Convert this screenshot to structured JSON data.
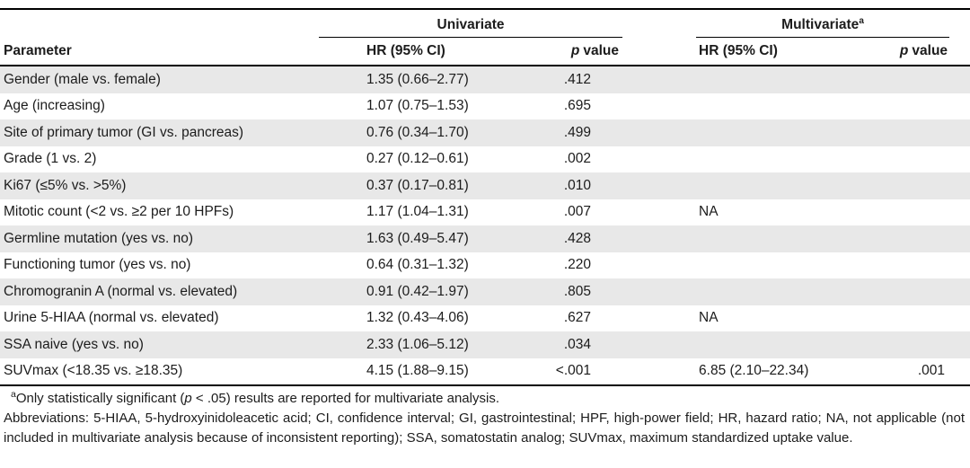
{
  "colors": {
    "stripe": "#e8e8e8",
    "rule": "#000000",
    "text": "#1c1c1c",
    "background": "#ffffff"
  },
  "table": {
    "header": {
      "parameter": "Parameter",
      "univariate": "Univariate",
      "multivariate": "Multivariate",
      "multivariate_sup": "a",
      "hr": "HR (95% CI)",
      "p_italic": "p",
      "p_rest": "value"
    },
    "rows": [
      {
        "param": "Gender (male vs. female)",
        "uhr": "1.35 (0.66–2.77)",
        "up": ".412",
        "mhr": "",
        "mp": ""
      },
      {
        "param": "Age (increasing)",
        "uhr": "1.07 (0.75–1.53)",
        "up": ".695",
        "mhr": "",
        "mp": ""
      },
      {
        "param": "Site of primary tumor (GI vs. pancreas)",
        "uhr": "0.76 (0.34–1.70)",
        "up": ".499",
        "mhr": "",
        "mp": ""
      },
      {
        "param": "Grade (1 vs. 2)",
        "uhr": "0.27 (0.12–0.61)",
        "up": ".002",
        "mhr": "",
        "mp": ""
      },
      {
        "param": "Ki67 (≤5% vs. >5%)",
        "uhr": "0.37 (0.17–0.81)",
        "up": ".010",
        "mhr": "",
        "mp": ""
      },
      {
        "param": "Mitotic count (<2 vs. ≥2 per 10 HPFs)",
        "uhr": "1.17 (1.04–1.31)",
        "up": ".007",
        "mhr": "NA",
        "mp": ""
      },
      {
        "param": "Germline mutation (yes vs. no)",
        "uhr": "1.63 (0.49–5.47)",
        "up": ".428",
        "mhr": "",
        "mp": ""
      },
      {
        "param": "Functioning tumor (yes vs. no)",
        "uhr": "0.64 (0.31–1.32)",
        "up": ".220",
        "mhr": "",
        "mp": ""
      },
      {
        "param": "Chromogranin A (normal vs. elevated)",
        "uhr": "0.91 (0.42–1.97)",
        "up": ".805",
        "mhr": "",
        "mp": ""
      },
      {
        "param": "Urine 5-HIAA (normal vs. elevated)",
        "uhr": "1.32 (0.43–4.06)",
        "up": ".627",
        "mhr": "NA",
        "mp": ""
      },
      {
        "param": "SSA naive (yes vs. no)",
        "uhr": "2.33 (1.06–5.12)",
        "up": ".034",
        "mhr": "",
        "mp": ""
      },
      {
        "param": "SUVmax (<18.35 vs. ≥18.35)",
        "uhr": "4.15 (1.88–9.15)",
        "up": "<.001",
        "mhr": "6.85 (2.10–22.34)",
        "mp": ".001"
      }
    ]
  },
  "footnotes": {
    "a_sup": "a",
    "a_pre": "Only statistically significant (",
    "a_italic": "p",
    "a_post": " < .05) results are reported for multivariate analysis.",
    "abbreviations": "Abbreviations: 5-HIAA, 5-hydroxyinidoleacetic acid; CI, confidence interval; GI, gastrointestinal; HPF, high-power field; HR, hazard ratio; NA, not applicable (not included in multivariate analysis because of inconsistent reporting); SSA, somatostatin analog; SUVmax, maximum standardized uptake value."
  }
}
